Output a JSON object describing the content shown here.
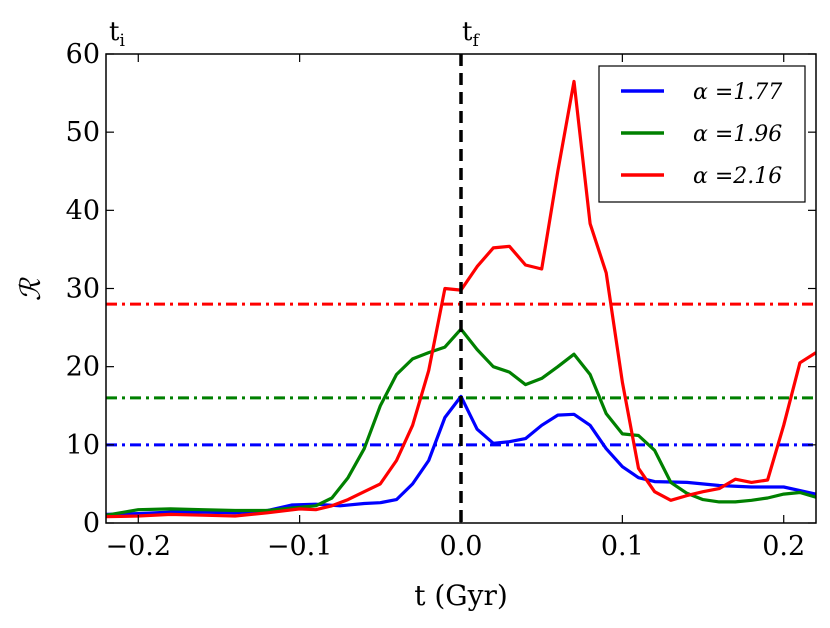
{
  "chart_data": {
    "type": "line",
    "title": "",
    "xlabel": "t (Gyr)",
    "ylabel": "ℛ",
    "xlim": [
      -0.22,
      0.22
    ],
    "ylim": [
      0,
      60
    ],
    "xticks": [
      -0.2,
      -0.1,
      0.0,
      0.1,
      0.2
    ],
    "xtick_labels": [
      "−0.2",
      "−0.1",
      "0.0",
      "0.1",
      "0.2"
    ],
    "yticks": [
      0,
      10,
      20,
      30,
      40,
      50,
      60
    ],
    "ytick_labels": [
      "0",
      "10",
      "20",
      "30",
      "40",
      "50",
      "60"
    ],
    "annotations": [
      {
        "text_main": "t",
        "text_sub": "i",
        "anchor": "top-left"
      },
      {
        "text_main": "t",
        "text_sub": "f",
        "x": 0.0
      }
    ],
    "vline": {
      "x": 0.0,
      "style": "dashed",
      "color": "#000000"
    },
    "hlines": [
      {
        "y": 10,
        "color": "#0000ff",
        "style": "dashdot"
      },
      {
        "y": 16,
        "color": "#008000",
        "style": "dashdot"
      },
      {
        "y": 28,
        "color": "#ff0000",
        "style": "dashdot"
      }
    ],
    "legend_position": "top-right",
    "series": [
      {
        "name": "α =1.77",
        "color": "#0000ff",
        "x": [
          -0.22,
          -0.2,
          -0.18,
          -0.16,
          -0.14,
          -0.12,
          -0.105,
          -0.09,
          -0.075,
          -0.06,
          -0.05,
          -0.04,
          -0.03,
          -0.02,
          -0.01,
          0.0,
          0.01,
          0.02,
          0.03,
          0.04,
          0.05,
          0.06,
          0.07,
          0.08,
          0.09,
          0.1,
          0.11,
          0.12,
          0.14,
          0.16,
          0.18,
          0.2,
          0.22
        ],
        "values": [
          1.1,
          1.2,
          1.4,
          1.4,
          1.3,
          1.6,
          2.3,
          2.4,
          2.2,
          2.5,
          2.6,
          3.0,
          5.0,
          8.0,
          13.5,
          16.2,
          12.0,
          10.2,
          10.4,
          10.8,
          12.5,
          13.8,
          13.9,
          12.5,
          9.5,
          7.2,
          5.8,
          5.3,
          5.2,
          4.8,
          4.6,
          4.6,
          3.7
        ]
      },
      {
        "name": "α =1.96",
        "color": "#008000",
        "x": [
          -0.22,
          -0.2,
          -0.18,
          -0.16,
          -0.14,
          -0.12,
          -0.105,
          -0.09,
          -0.08,
          -0.07,
          -0.06,
          -0.05,
          -0.04,
          -0.03,
          -0.02,
          -0.01,
          0.0,
          0.01,
          0.02,
          0.03,
          0.04,
          0.05,
          0.06,
          0.07,
          0.08,
          0.09,
          0.1,
          0.11,
          0.12,
          0.13,
          0.14,
          0.15,
          0.16,
          0.17,
          0.18,
          0.19,
          0.2,
          0.21,
          0.22
        ],
        "values": [
          1.0,
          1.7,
          1.8,
          1.7,
          1.6,
          1.6,
          1.9,
          2.2,
          3.2,
          5.8,
          9.5,
          15.0,
          19.0,
          21.0,
          21.8,
          22.5,
          24.8,
          22.2,
          20.0,
          19.3,
          17.7,
          18.5,
          20.0,
          21.6,
          19.0,
          14.0,
          11.4,
          11.2,
          9.3,
          5.2,
          3.8,
          3.0,
          2.7,
          2.7,
          2.9,
          3.2,
          3.7,
          3.9,
          3.3
        ]
      },
      {
        "name": "α =2.16",
        "color": "#ff0000",
        "x": [
          -0.22,
          -0.2,
          -0.18,
          -0.16,
          -0.14,
          -0.12,
          -0.1,
          -0.09,
          -0.08,
          -0.07,
          -0.06,
          -0.05,
          -0.04,
          -0.03,
          -0.02,
          -0.01,
          0.0,
          0.01,
          0.02,
          0.03,
          0.04,
          0.05,
          0.06,
          0.07,
          0.08,
          0.09,
          0.1,
          0.11,
          0.12,
          0.13,
          0.14,
          0.15,
          0.16,
          0.17,
          0.18,
          0.19,
          0.2,
          0.21,
          0.22
        ],
        "values": [
          0.8,
          0.9,
          1.1,
          1.0,
          0.9,
          1.3,
          1.8,
          1.7,
          2.2,
          3.0,
          4.0,
          5.0,
          8.0,
          12.5,
          19.5,
          30.0,
          29.8,
          32.8,
          35.2,
          35.4,
          33.0,
          32.5,
          45.0,
          56.5,
          38.3,
          32.0,
          18.0,
          7.0,
          4.0,
          2.9,
          3.5,
          4.0,
          4.4,
          5.6,
          5.2,
          5.5,
          12.5,
          20.5,
          21.8
        ]
      }
    ]
  }
}
